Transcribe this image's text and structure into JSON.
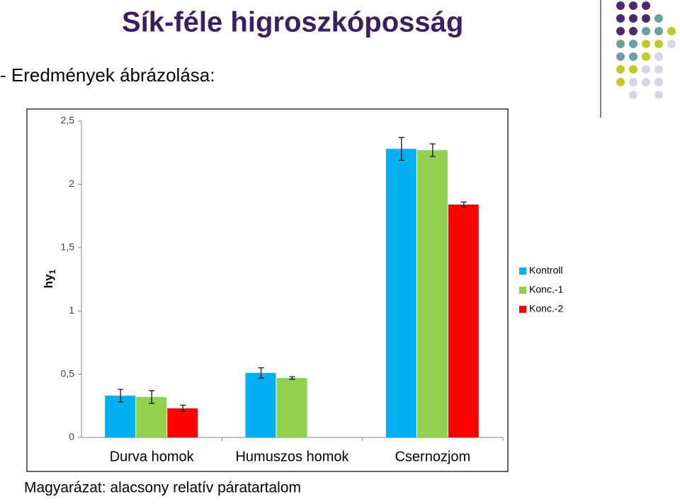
{
  "header": {
    "title": "Sík-féle higroszkóposság",
    "subtitle": "- Eredmények ábrázolása:"
  },
  "footer": "Magyarázat: alacsony relatív páratartalom",
  "chart_data": {
    "type": "bar",
    "y_label": "hy",
    "y_label_subscript": "1",
    "categories": [
      "Durva homok",
      "Humuszos homok",
      "Csernozjom"
    ],
    "series": [
      {
        "name": "Kontroll",
        "color": "#00b0f0",
        "values": [
          0.33,
          0.51,
          2.28
        ],
        "errors": [
          0.05,
          0.04,
          0.09
        ]
      },
      {
        "name": "Konc.-1",
        "color": "#92d050",
        "values": [
          0.32,
          0.47,
          2.27
        ],
        "errors": [
          0.05,
          0.01,
          0.05
        ]
      },
      {
        "name": "Konc.-2",
        "color": "#ff0000",
        "values": [
          0.23,
          null,
          1.84
        ],
        "errors": [
          0.025,
          null,
          0.02
        ]
      }
    ],
    "ylim": [
      0,
      2.5
    ],
    "yticks": [
      0,
      {
        "value": 0.5,
        "label": "0,5"
      },
      1,
      {
        "value": 1.5,
        "label": "1,5"
      },
      2,
      {
        "value": 2.5,
        "label": "2,5"
      }
    ],
    "grid": false,
    "legend": "right"
  }
}
